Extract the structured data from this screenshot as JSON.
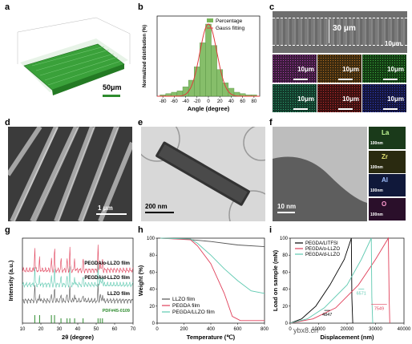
{
  "panels": {
    "a": {
      "label": "a",
      "scale": "50μm"
    },
    "b": {
      "label": "b"
    },
    "c": {
      "label": "c",
      "scale_main": "10μm",
      "inline_measure": "30 μm",
      "map_scales": [
        "10μm",
        "10μm",
        "10μm",
        "10μm",
        "10μm",
        "10μm"
      ]
    },
    "d": {
      "label": "d",
      "scale": "1 μm"
    },
    "e": {
      "label": "e",
      "scale": "200 nm"
    },
    "f": {
      "label": "f",
      "scale": "10 nm",
      "elements": [
        "La",
        "Zr",
        "Al",
        "O"
      ],
      "element_scales": [
        "100nm",
        "100nm",
        "100nm",
        "100nm"
      ]
    },
    "g": {
      "label": "g"
    },
    "h": {
      "label": "h"
    },
    "i": {
      "label": "i"
    }
  },
  "colors": {
    "green_dark": "#2e8b2e",
    "green_bar": "#7ab85a",
    "gauss_red": "#e03a3a",
    "teal": "#5ec9b0",
    "pink": "#e0405a",
    "gray": "#555555"
  },
  "chart_data": [
    {
      "type": "bar",
      "panel": "b",
      "xlabel": "Angle (degree)",
      "ylabel": "Normalized distribution (%)",
      "xticks": [
        "-80",
        "-60",
        "-40",
        "-20",
        "0",
        "20",
        "40",
        "60",
        "80"
      ],
      "xlim": [
        -90,
        90
      ],
      "legend": [
        "Percentage",
        "Gauss fitting"
      ],
      "bins": [
        -80,
        -70,
        -60,
        -50,
        -40,
        -30,
        -20,
        -10,
        0,
        10,
        20,
        30,
        40,
        50,
        60,
        70,
        80
      ],
      "values": [
        0.5,
        1,
        1.5,
        2,
        3.5,
        6,
        11,
        20,
        27,
        19,
        10,
        5,
        3,
        1.5,
        1,
        0.5,
        0.5
      ],
      "gauss": {
        "mean": 0,
        "sd": 15,
        "peak": 27
      }
    },
    {
      "type": "line",
      "panel": "g",
      "xlabel": "2θ (degree)",
      "ylabel": "Intensity (a.u.)",
      "xticks": [
        "10",
        "20",
        "30",
        "40",
        "50",
        "60",
        "70"
      ],
      "xlim": [
        10,
        70
      ],
      "series": [
        {
          "name": "PEGDA/o-LLZO film",
          "color": "#e0405a"
        },
        {
          "name": "PEGDA/d-LLZO film",
          "color": "#5ec9b0"
        },
        {
          "name": "LLZO film",
          "color": "#555555"
        }
      ],
      "reference": "PDF#45-0109",
      "peaks": [
        16.7,
        19.3,
        25.7,
        27.4,
        30.9,
        34.2,
        35.7,
        38.3,
        42.9,
        51.0,
        52.2,
        53.4
      ]
    },
    {
      "type": "line",
      "panel": "h",
      "xlabel": "Temperature (℃)",
      "ylabel": "Weight (%)",
      "xticks": [
        "0",
        "200",
        "400",
        "600",
        "800"
      ],
      "yticks": [
        "0",
        "20",
        "40",
        "60",
        "80",
        "100"
      ],
      "xlim": [
        0,
        800
      ],
      "ylim": [
        0,
        100
      ],
      "series": [
        {
          "name": "LLZO film",
          "color": "#555555",
          "x": [
            25,
            200,
            400,
            600,
            800
          ],
          "y": [
            100,
            99,
            96,
            92,
            90
          ]
        },
        {
          "name": "PEGDA film",
          "color": "#e0405a",
          "x": [
            25,
            250,
            300,
            400,
            500,
            560,
            620,
            800
          ],
          "y": [
            100,
            98,
            91,
            70,
            35,
            8,
            3,
            3
          ]
        },
        {
          "name": "PEGDA/LLZO film",
          "color": "#5ec9b0",
          "x": [
            25,
            250,
            300,
            400,
            500,
            600,
            700,
            800
          ],
          "y": [
            100,
            99,
            94,
            80,
            64,
            50,
            38,
            35
          ]
        }
      ]
    },
    {
      "type": "line",
      "panel": "i",
      "xlabel": "Displacement (nm)",
      "ylabel": "Load on sample (mN)",
      "xticks": [
        "0",
        "10000",
        "20000",
        "30000",
        "40000"
      ],
      "yticks": [
        "0",
        "20",
        "40",
        "60",
        "80",
        "100"
      ],
      "xlim": [
        0,
        40000
      ],
      "ylim": [
        0,
        100
      ],
      "legend": [
        "PEGDA/LITFSI",
        "PEGDA/o-LLZO",
        "PEGDA/d-LLZO"
      ],
      "annotations": [
        "4847",
        "6571",
        "7549"
      ],
      "series": [
        {
          "name": "PEGDA/LITFSI",
          "color": "#000000",
          "load_x": [
            0,
            4000,
            9000,
            14000,
            19000,
            21500
          ],
          "load_y": [
            0,
            5,
            20,
            45,
            75,
            100
          ],
          "unload_x": [
            21500,
            21700,
            22000
          ],
          "unload_y": [
            100,
            30,
            0
          ]
        },
        {
          "name": "PEGDA/o-LLZO",
          "color": "#e0405a",
          "load_x": [
            0,
            8000,
            16000,
            24000,
            30000,
            34500
          ],
          "load_y": [
            0,
            5,
            18,
            45,
            75,
            100
          ],
          "unload_x": [
            34500,
            34800,
            35000
          ],
          "unload_y": [
            100,
            30,
            0
          ]
        },
        {
          "name": "PEGDA/d-LLZO",
          "color": "#5ec9b0",
          "load_x": [
            0,
            6000,
            12000,
            20000,
            25000,
            28500
          ],
          "load_y": [
            0,
            5,
            18,
            45,
            75,
            100
          ],
          "unload_x": [
            28500,
            28700,
            29000
          ],
          "unload_y": [
            100,
            30,
            0
          ]
        }
      ]
    }
  ],
  "footer": "ybx8.cn"
}
